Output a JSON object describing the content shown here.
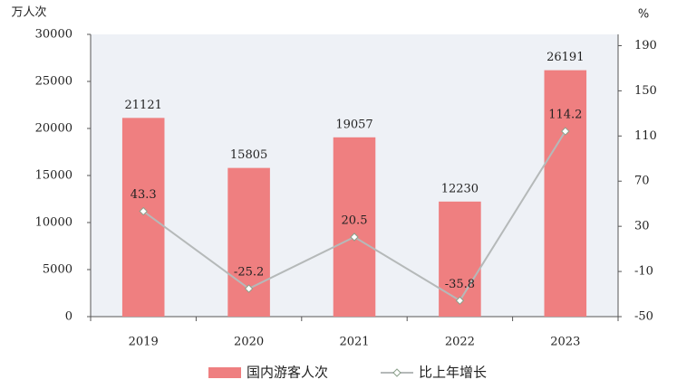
{
  "chart_data": {
    "type": "bar",
    "categories": [
      "2019",
      "2020",
      "2021",
      "2022",
      "2023"
    ],
    "ylabel": "万人次",
    "y2label": "%",
    "series": [
      {
        "name": "国内游客人次",
        "type": "bar",
        "color": "#ef7f80",
        "values": [
          21121,
          15805,
          19057,
          12230,
          26191
        ]
      },
      {
        "name": "比上年增长",
        "type": "line",
        "axis": "y2",
        "color": "#b5b9b9",
        "values": [
          43.3,
          -25.2,
          20.5,
          -35.8,
          114.2
        ]
      }
    ],
    "ylim": [
      0,
      30000
    ],
    "yticks": [
      0,
      5000,
      10000,
      15000,
      20000,
      25000,
      30000
    ],
    "y2lim": [
      -50,
      200
    ],
    "y2ticks": [
      -50,
      -10,
      30,
      70,
      110,
      150,
      190
    ]
  }
}
